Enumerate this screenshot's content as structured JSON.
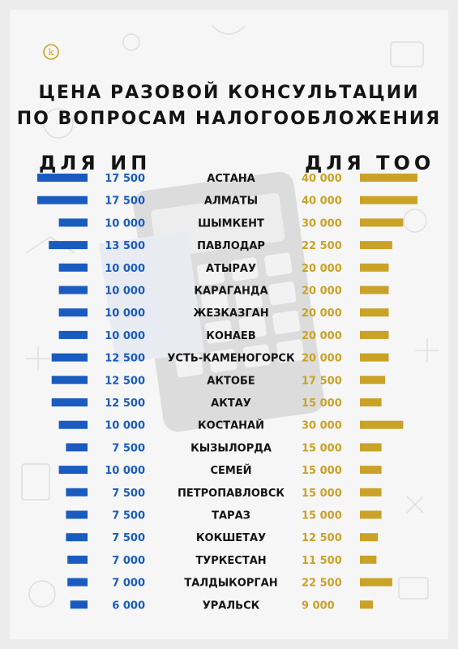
{
  "logo": {
    "icon": "k-circle-logo",
    "letter": "k",
    "color": "#c9a227"
  },
  "title": {
    "line1": "ЦЕНА РАЗОВОЙ КОНСУЛЬТАЦИИ",
    "line2": "ПО ВОПРОСАМ НАЛОГООБЛОЖЕНИЯ"
  },
  "colors": {
    "ip": "#1a5bbf",
    "too": "#c9a227",
    "city": "#141414"
  },
  "chart_data": {
    "type": "bar",
    "orientation": "horizontal-diverging",
    "categories": [
      "АСТАНА",
      "АЛМАТЫ",
      "ШЫМКЕНТ",
      "ПАВЛОДАР",
      "АТЫРАУ",
      "КАРАГАНДА",
      "ЖЕЗКАЗГАН",
      "КОНАЕВ",
      "УСТЬ-КАМЕНОГОРСК",
      "АКТОБЕ",
      "АКТАУ",
      "КОСТАНАЙ",
      "КЫЗЫЛОРДА",
      "СЕМЕЙ",
      "ПЕТРОПАВЛОВСК",
      "ТАРАЗ",
      "КОКШЕТАУ",
      "ТУРКЕСТАН",
      "ТАЛДЫКОРГАН",
      "УРАЛЬСК"
    ],
    "series": [
      {
        "name": "ДЛЯ ИП",
        "color": "#1a5bbf",
        "values": [
          17500,
          17500,
          10000,
          13500,
          10000,
          10000,
          10000,
          10000,
          12500,
          12500,
          12500,
          10000,
          7500,
          10000,
          7500,
          7500,
          7500,
          7000,
          7000,
          6000
        ],
        "labels": [
          "17 500",
          "17 500",
          "10 000",
          "13 500",
          "10 000",
          "10 000",
          "10 000",
          "10 000",
          "12 500",
          "12 500",
          "12 500",
          "10 000",
          "7 500",
          "10 000",
          "7 500",
          "7 500",
          "7 500",
          "7 000",
          "7 000",
          "6 000"
        ]
      },
      {
        "name": "ДЛЯ ТОО",
        "color": "#c9a227",
        "values": [
          40000,
          40000,
          30000,
          22500,
          20000,
          20000,
          20000,
          20000,
          20000,
          17500,
          15000,
          30000,
          15000,
          15000,
          15000,
          15000,
          12500,
          11500,
          22500,
          9000
        ],
        "labels": [
          "40 000",
          "40 000",
          "30 000",
          "22 500",
          "20 000",
          "20 000",
          "20 000",
          "20 000",
          "20 000",
          "17 500",
          "15 000",
          "30 000",
          "15 000",
          "15 000",
          "15 000",
          "15 000",
          "12 500",
          "11 500",
          "22 500",
          "9 000"
        ]
      }
    ]
  }
}
